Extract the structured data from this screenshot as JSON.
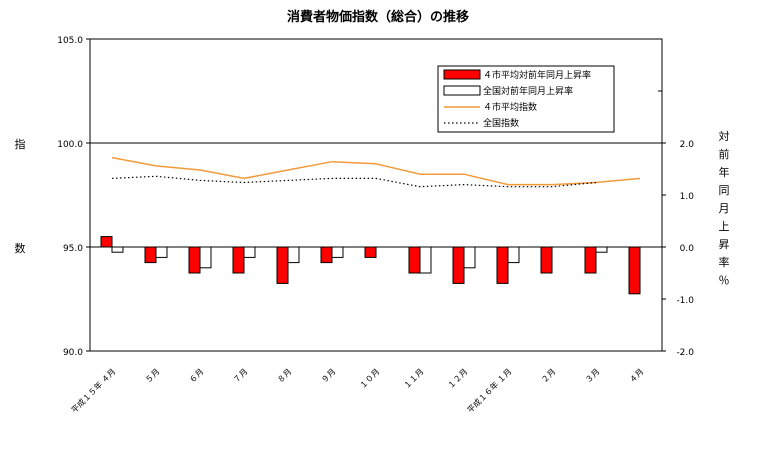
{
  "chart_data": {
    "type": "bar",
    "title": "消費者物価指数（総合）の推移",
    "left_axis_label": "指数",
    "right_axis_label": "対前年同月上昇率％",
    "left_ylim": [
      90.0,
      105.0
    ],
    "left_ticks": [
      "105.0",
      "100.0",
      "95.0",
      "90.0"
    ],
    "right_ylim": [
      -2.0,
      4.0
    ],
    "right_ticks": [
      "2.0",
      "1.0",
      "0.0",
      "-1.0",
      "-2.0"
    ],
    "categories": [
      "平成１５年 ４月",
      "５月",
      "６月",
      "７月",
      "８月",
      "９月",
      "１０月",
      "１１月",
      "１２月",
      "平成１６年 １月",
      "２月",
      "３月",
      "４月"
    ],
    "grid": false,
    "legend_position": "top-right",
    "series": [
      {
        "name": "４市平均対前年同月上昇率",
        "kind": "bar",
        "axis": "right",
        "color": "#ff0000",
        "values": [
          0.2,
          -0.3,
          -0.5,
          -0.5,
          -0.7,
          -0.3,
          -0.2,
          -0.5,
          -0.7,
          -0.7,
          -0.5,
          -0.5,
          -0.9
        ]
      },
      {
        "name": "全国対前年同月上昇率",
        "kind": "bar",
        "axis": "right",
        "color": "#ffffff",
        "values": [
          -0.1,
          -0.2,
          -0.4,
          -0.2,
          -0.3,
          -0.2,
          null,
          -0.5,
          -0.4,
          -0.3,
          null,
          -0.1,
          null
        ]
      },
      {
        "name": "４市平均指数",
        "kind": "line",
        "axis": "left",
        "color": "#f39a3a",
        "values": [
          99.3,
          98.9,
          98.7,
          98.3,
          98.7,
          99.1,
          99.0,
          98.5,
          98.5,
          98.0,
          98.0,
          98.1,
          98.3
        ]
      },
      {
        "name": "全国指数",
        "kind": "dotted-line",
        "axis": "left",
        "color": "#000000",
        "values": [
          98.3,
          98.4,
          98.2,
          98.1,
          98.2,
          98.3,
          98.3,
          97.9,
          98.0,
          97.9,
          97.9,
          98.1,
          null
        ]
      }
    ]
  }
}
